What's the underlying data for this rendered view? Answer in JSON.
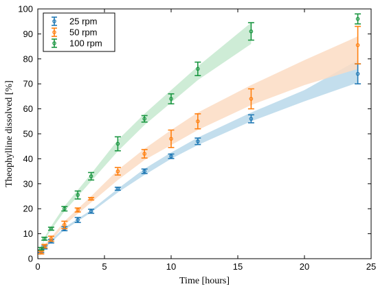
{
  "colors": {
    "series": [
      "#1f78b4",
      "#ff7f0e",
      "#1a9641"
    ],
    "bands": [
      "#b9d8ea",
      "#fbdcc3",
      "#c6e9cf"
    ],
    "axis": "#000000"
  },
  "chart_data": {
    "type": "scatter",
    "title": "",
    "xlabel": "Time [hours]",
    "ylabel": "Theophylline dissolved [%]",
    "xlim": [
      0,
      25
    ],
    "ylim": [
      0,
      100
    ],
    "xticks": [
      0,
      5,
      10,
      15,
      20,
      25
    ],
    "yticks": [
      0,
      10,
      20,
      30,
      40,
      50,
      60,
      70,
      80,
      90,
      100
    ],
    "grid": false,
    "legend_position": "top-left",
    "series": [
      {
        "name": "25 rpm",
        "color": "#1f78b4",
        "marker": "circle",
        "x": [
          0.25,
          0.5,
          1,
          2,
          3,
          4,
          6,
          8,
          10,
          12,
          16,
          24
        ],
        "y": [
          3.0,
          4.5,
          7.0,
          12.0,
          15.5,
          19.0,
          28.0,
          35.0,
          41.0,
          47.0,
          56.0,
          74.0
        ],
        "err": [
          0.5,
          0.6,
          0.7,
          0.8,
          1.0,
          0.8,
          0.6,
          0.9,
          0.9,
          1.3,
          1.6,
          4.0
        ],
        "band_x": [
          0,
          0.5,
          1,
          2,
          3,
          4,
          6,
          8,
          10,
          12,
          16,
          20,
          24
        ],
        "band_lower": [
          0,
          4.0,
          6.5,
          11.5,
          15.0,
          18.5,
          26.5,
          33.5,
          40.0,
          45.5,
          55.0,
          63.0,
          70.5
        ],
        "band_upper": [
          0,
          5.0,
          7.5,
          12.5,
          16.0,
          19.5,
          28.0,
          36.0,
          42.5,
          48.5,
          58.5,
          67.5,
          79.5
        ]
      },
      {
        "name": "50 rpm",
        "color": "#ff7f0e",
        "marker": "circle",
        "x": [
          0.25,
          0.5,
          1,
          2,
          3,
          4,
          6,
          8,
          10,
          12,
          16,
          24
        ],
        "y": [
          2.5,
          5.0,
          8.0,
          13.5,
          19.5,
          24.0,
          35.0,
          42.0,
          48.0,
          55.0,
          64.0,
          85.5
        ],
        "err": [
          0.6,
          0.7,
          1.0,
          1.5,
          0.8,
          0.5,
          1.5,
          1.7,
          3.5,
          3.0,
          4.0,
          7.5
        ],
        "band_x": [
          0,
          0.5,
          1,
          2,
          3,
          4,
          6,
          8,
          10,
          12,
          16,
          20,
          24
        ],
        "band_lower": [
          0,
          4.5,
          7.0,
          13.5,
          18.0,
          22.5,
          31.5,
          39.5,
          45.5,
          51.5,
          61.5,
          69.5,
          76.0
        ],
        "band_upper": [
          0,
          5.5,
          8.5,
          15.0,
          20.0,
          25.0,
          35.5,
          44.0,
          51.5,
          58.5,
          69.5,
          79.5,
          89.0
        ]
      },
      {
        "name": "100 rpm",
        "color": "#1a9641",
        "marker": "circle",
        "x": [
          0.25,
          0.5,
          1,
          2,
          3,
          4,
          6,
          8,
          10,
          12,
          16,
          24
        ],
        "y": [
          4.0,
          8.0,
          12.0,
          20.0,
          25.5,
          33.0,
          46.0,
          56.0,
          64.0,
          76.0,
          91.0,
          96.0
        ],
        "err": [
          0.5,
          0.6,
          0.6,
          0.9,
          1.6,
          1.5,
          2.8,
          1.3,
          2.0,
          2.7,
          3.5,
          2.0
        ],
        "band_x": [
          0,
          0.5,
          1,
          2,
          3,
          4,
          6,
          8,
          10,
          12,
          16
        ],
        "band_lower": [
          0,
          7.5,
          11.5,
          19.0,
          25.0,
          31.0,
          43.0,
          53.5,
          62.5,
          71.5,
          86.0
        ],
        "band_upper": [
          0,
          8.5,
          13.0,
          21.0,
          27.5,
          34.0,
          47.5,
          58.0,
          67.5,
          77.0,
          94.5
        ]
      }
    ]
  }
}
